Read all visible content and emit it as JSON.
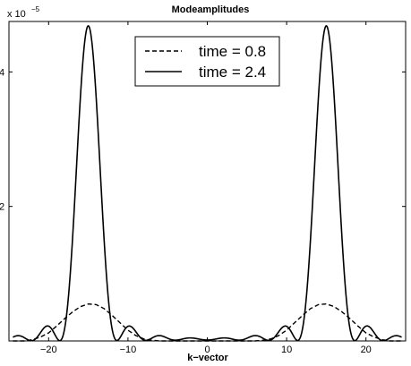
{
  "chart_data": {
    "type": "line",
    "title": "Modeamplitudes",
    "xlabel": "k−vector",
    "ylabel": "",
    "y_multiplier": "x 10",
    "y_multiplier_exp": "−5",
    "xlim": [
      -25,
      25
    ],
    "ylim": [
      0,
      4.75
    ],
    "x_ticks": [
      -20,
      -10,
      0,
      10,
      20
    ],
    "x_tick_labels": [
      "−20",
      "−10",
      "0",
      "10",
      "20"
    ],
    "y_ticks": [
      2,
      4
    ],
    "y_tick_labels": [
      "2",
      "4"
    ],
    "grid": false,
    "legend_position": "top-center",
    "series": [
      {
        "name": "time = 0.8",
        "style": "dashed",
        "color": "#000000",
        "x": [
          -24.5,
          -23,
          -22,
          -21,
          -20,
          -19,
          -18,
          -17,
          -16,
          -15,
          -14,
          -13,
          -12,
          -11,
          -10,
          -9,
          -8,
          -7,
          -6,
          -4,
          -2,
          0,
          2,
          4,
          6,
          7,
          8,
          9,
          10,
          11,
          12,
          13,
          14,
          15,
          16,
          17,
          18,
          19,
          20,
          21,
          22,
          23,
          24.5
        ],
        "y": [
          0.0,
          0.0,
          0.02,
          0.06,
          0.12,
          0.22,
          0.33,
          0.43,
          0.51,
          0.55,
          0.54,
          0.48,
          0.38,
          0.27,
          0.16,
          0.08,
          0.03,
          0.01,
          0.0,
          0.0,
          0.0,
          0.0,
          0.0,
          0.0,
          0.0,
          0.01,
          0.03,
          0.08,
          0.16,
          0.27,
          0.38,
          0.48,
          0.54,
          0.55,
          0.51,
          0.43,
          0.33,
          0.22,
          0.12,
          0.06,
          0.02,
          0.0,
          0.0
        ]
      },
      {
        "name": "time = 2.4",
        "style": "solid",
        "color": "#000000",
        "peaks": [
          {
            "center": -15,
            "amplitude": 4.68
          },
          {
            "center": 15,
            "amplitude": 4.68
          }
        ]
      }
    ]
  }
}
